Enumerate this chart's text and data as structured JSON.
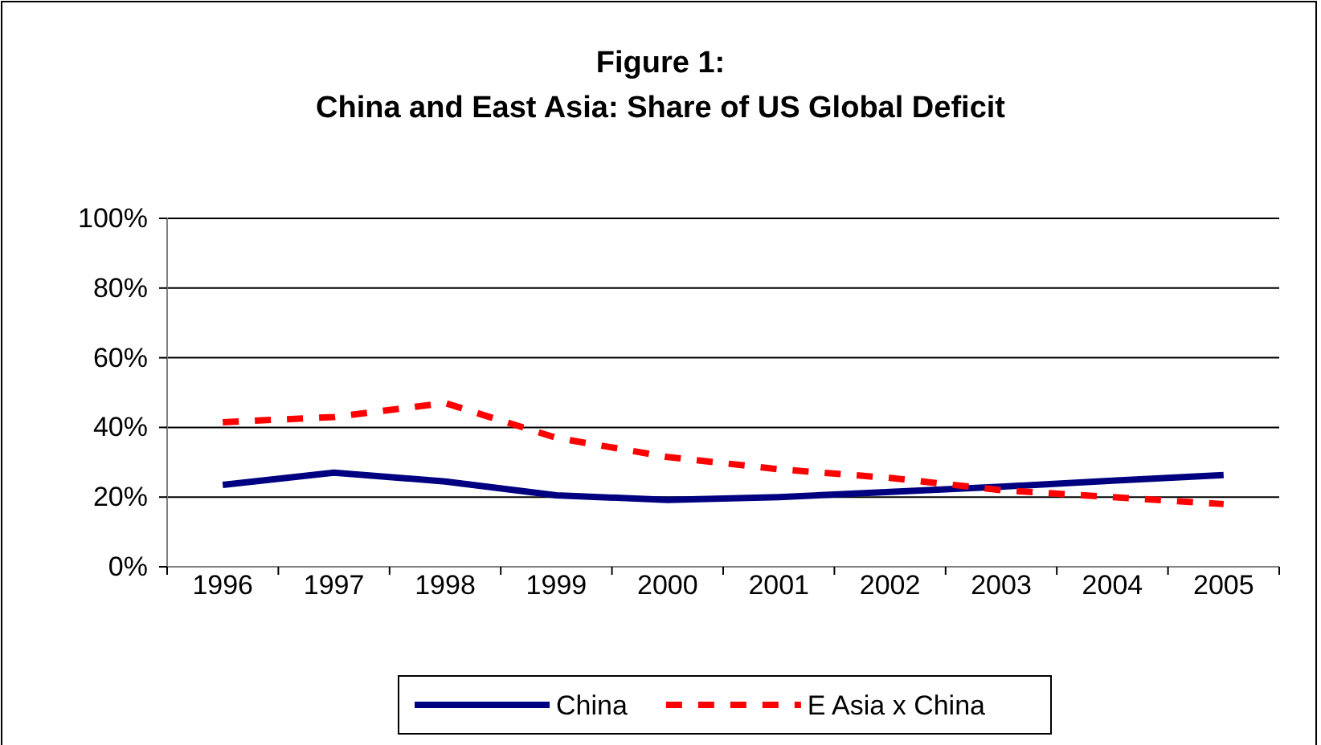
{
  "chart_data": {
    "type": "line",
    "title": "Figure 1:\nChina and East Asia: Share of US Global Deficit",
    "categories": [
      "1996",
      "1997",
      "1998",
      "1999",
      "2000",
      "2001",
      "2002",
      "2003",
      "2004",
      "2005"
    ],
    "series": [
      {
        "name": "China",
        "color": "#000080",
        "line_style": "solid",
        "values": [
          23.5,
          27,
          24.5,
          20.5,
          19.2,
          20,
          21.5,
          23,
          24.7,
          26.3
        ]
      },
      {
        "name": "E Asia x China",
        "color": "#ff0000",
        "line_style": "dashed",
        "values": [
          41.5,
          43,
          47,
          37,
          31.5,
          28,
          25.5,
          22,
          20,
          18
        ]
      }
    ],
    "ylim": [
      0,
      100
    ],
    "yticks": [
      {
        "value": 0,
        "label": "0%"
      },
      {
        "value": 20,
        "label": "20%"
      },
      {
        "value": 40,
        "label": "40%"
      },
      {
        "value": 60,
        "label": "60%"
      },
      {
        "value": 80,
        "label": "80%"
      },
      {
        "value": 100,
        "label": "100%"
      }
    ],
    "grid": "y",
    "legend": "bottom",
    "marker": "none"
  }
}
